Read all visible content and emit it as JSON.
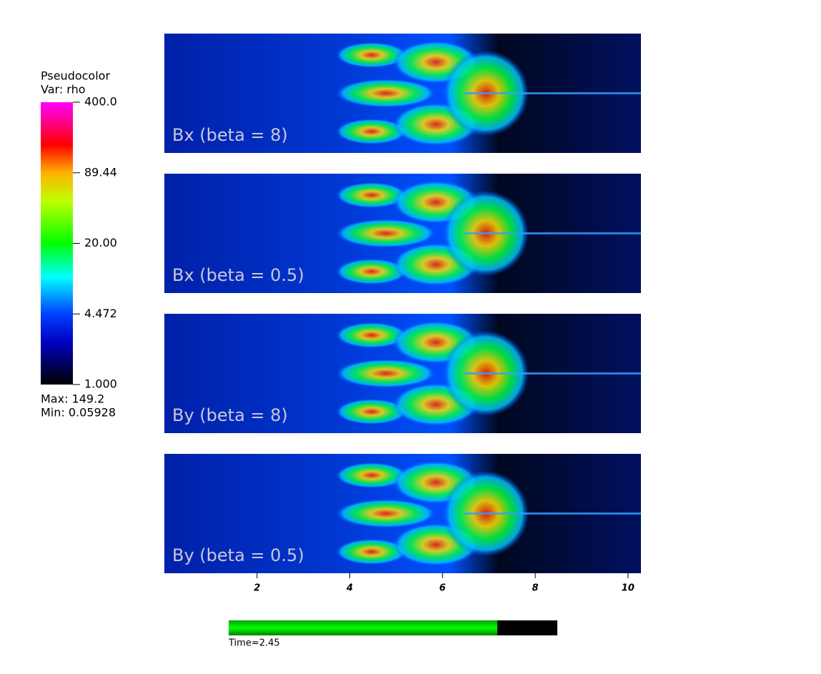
{
  "legend": {
    "title": "Pseudocolor",
    "variable": "Var: rho",
    "labels": [
      "400.0",
      "89.44",
      "20.00",
      "4.472",
      "1.000"
    ],
    "max": "Max:  149.2",
    "min": "Min:  0.05928"
  },
  "panels": [
    {
      "label": "Bx (beta = 8)"
    },
    {
      "label": "Bx (beta = 0.5)"
    },
    {
      "label": "By (beta = 8)"
    },
    {
      "label": "By (beta = 0.5)"
    }
  ],
  "x_axis": {
    "xlim": [
      0,
      10.28
    ],
    "xticks": [
      2,
      4,
      6,
      8,
      10
    ]
  },
  "time": "Time=2.45"
}
